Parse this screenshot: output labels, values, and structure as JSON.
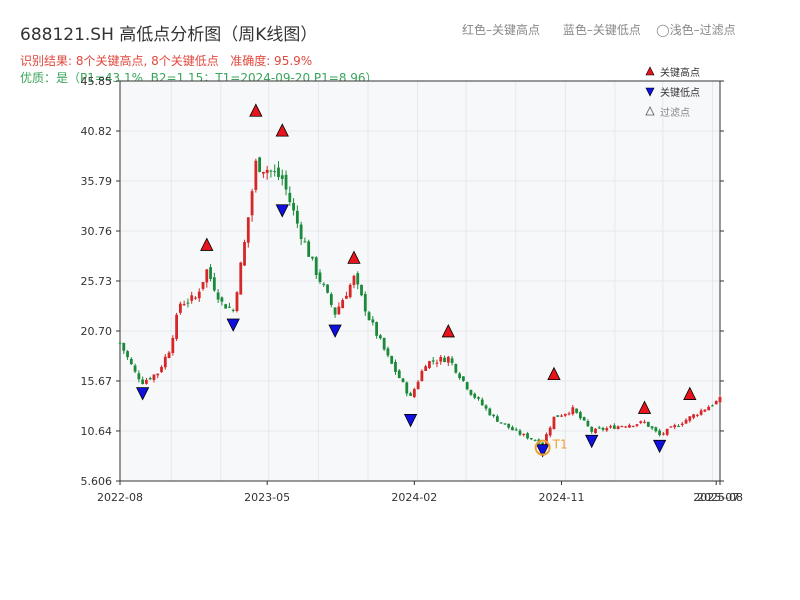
{
  "header": {
    "title": "688121.SH 高低点分析图（周K线图）",
    "color_legend": "红色–关键高点      蓝色–关键低点    ◯浅色–过滤点",
    "result_line": "识别结果: 8个关键高点, 8个关键低点   准确度: 95.9%",
    "quality_line": "优质：是（P1=43.1%, B2=1.15；T1=2024-09-20 P1=8.96）"
  },
  "colors": {
    "up": "#d62728",
    "down": "#1a8a3a",
    "high_marker": "#e8141b",
    "low_marker": "#1010e0",
    "t1_ring": "#f0a030",
    "grid": "#e4e8ee",
    "plot_bg": "#f7f8fa"
  },
  "chart_data": {
    "type": "candlestick",
    "title": "688121.SH 高低点分析图（周K线图）",
    "ylim": [
      5.606,
      45.85
    ],
    "yticks": [
      "5.606",
      "10.64",
      "15.67",
      "20.70",
      "25.73",
      "30.76",
      "35.79",
      "40.82",
      "45.85"
    ],
    "xticks": [
      "2022-08",
      "2023-05",
      "2024-02",
      "2024-11",
      "2025-07",
      "2025-08"
    ],
    "x_range": [
      "2022-07-29",
      "2025-08-15"
    ],
    "grid": true,
    "legend": {
      "position": "top-right",
      "items": [
        {
          "label": "关键高点",
          "marker": "high"
        },
        {
          "label": "关键低点",
          "marker": "low"
        },
        {
          "label": "过滤点",
          "marker": "filtered"
        }
      ]
    },
    "key_highs": [
      {
        "date": "2023-01-06",
        "price": 28.5
      },
      {
        "date": "2023-04-07",
        "price": 42.0
      },
      {
        "date": "2023-05-26",
        "price": 40.0
      },
      {
        "date": "2023-10-06",
        "price": 27.2
      },
      {
        "date": "2024-03-29",
        "price": 19.8
      },
      {
        "date": "2024-10-11",
        "price": 15.5
      },
      {
        "date": "2025-03-28",
        "price": 12.1
      },
      {
        "date": "2025-06-20",
        "price": 13.5
      }
    ],
    "key_lows": [
      {
        "date": "2022-09-09",
        "price": 14.7
      },
      {
        "date": "2023-02-24",
        "price": 21.6
      },
      {
        "date": "2023-05-26",
        "price": 33.1
      },
      {
        "date": "2023-09-01",
        "price": 21.0
      },
      {
        "date": "2024-01-19",
        "price": 12.0
      },
      {
        "date": "2024-09-20",
        "price": 8.96
      },
      {
        "date": "2024-12-20",
        "price": 9.9
      },
      {
        "date": "2025-04-25",
        "price": 9.4
      }
    ],
    "annotation": {
      "label": "T1",
      "date": "2024-09-20",
      "price": 8.96
    },
    "anchor_closes": [
      {
        "date": "2022-07-29",
        "close": 19.5
      },
      {
        "date": "2022-08-26",
        "close": 16.5
      },
      {
        "date": "2022-09-09",
        "close": 15.6
      },
      {
        "date": "2022-10-07",
        "close": 16.5
      },
      {
        "date": "2022-10-28",
        "close": 18.8
      },
      {
        "date": "2022-11-18",
        "close": 23.5
      },
      {
        "date": "2022-12-16",
        "close": 24.0
      },
      {
        "date": "2023-01-06",
        "close": 26.8
      },
      {
        "date": "2023-02-03",
        "close": 23.5
      },
      {
        "date": "2023-02-24",
        "close": 22.8
      },
      {
        "date": "2023-03-17",
        "close": 29.5
      },
      {
        "date": "2023-04-07",
        "close": 37.5
      },
      {
        "date": "2023-04-28",
        "close": 37.0
      },
      {
        "date": "2023-05-26",
        "close": 36.0
      },
      {
        "date": "2023-06-23",
        "close": 31.5
      },
      {
        "date": "2023-07-21",
        "close": 27.5
      },
      {
        "date": "2023-09-01",
        "close": 22.5
      },
      {
        "date": "2023-10-06",
        "close": 26.0
      },
      {
        "date": "2023-11-03",
        "close": 22.0
      },
      {
        "date": "2023-12-08",
        "close": 18.0
      },
      {
        "date": "2024-01-19",
        "close": 14.0
      },
      {
        "date": "2024-02-16",
        "close": 17.5
      },
      {
        "date": "2024-03-29",
        "close": 18.0
      },
      {
        "date": "2024-05-10",
        "close": 14.5
      },
      {
        "date": "2024-06-21",
        "close": 12.0
      },
      {
        "date": "2024-08-02",
        "close": 10.5
      },
      {
        "date": "2024-09-20",
        "close": 9.4
      },
      {
        "date": "2024-10-11",
        "close": 12.0
      },
      {
        "date": "2024-11-15",
        "close": 12.8
      },
      {
        "date": "2024-12-20",
        "close": 10.6
      },
      {
        "date": "2025-02-14",
        "close": 11.2
      },
      {
        "date": "2025-03-28",
        "close": 11.5
      },
      {
        "date": "2025-04-25",
        "close": 10.2
      },
      {
        "date": "2025-06-20",
        "close": 12.0
      },
      {
        "date": "2025-08-15",
        "close": 13.8
      }
    ]
  }
}
